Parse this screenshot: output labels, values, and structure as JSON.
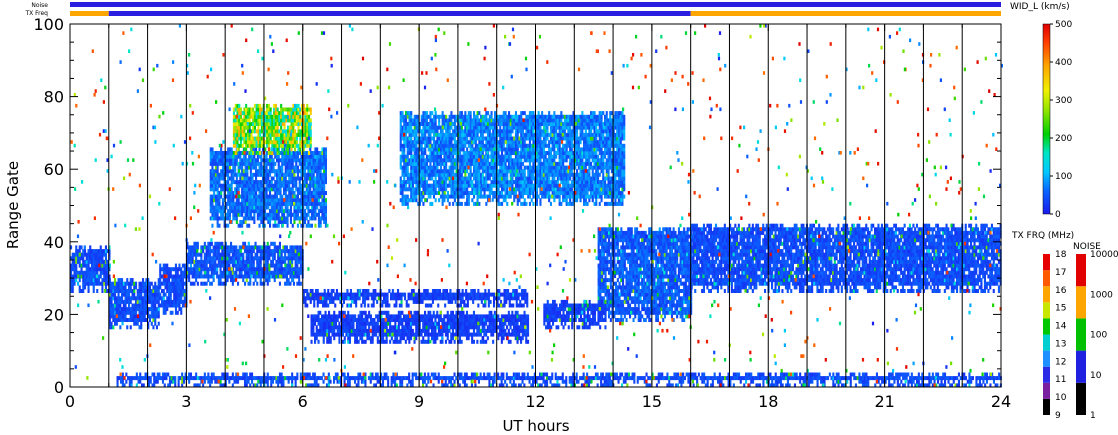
{
  "chart_data": {
    "type": "heatmap",
    "xlabel": "UT hours",
    "ylabel": "Range Gate",
    "xlim": [
      0,
      24
    ],
    "ylim": [
      0,
      100
    ],
    "x_ticks": [
      0,
      3,
      6,
      9,
      12,
      15,
      18,
      21,
      24
    ],
    "y_ticks": [
      0,
      20,
      40,
      60,
      80,
      100
    ],
    "scan_boundaries_ut": [
      1,
      2,
      3,
      4,
      5,
      6,
      7,
      8,
      9,
      10,
      11,
      12,
      13,
      14,
      15,
      16,
      17,
      18,
      19,
      20,
      21,
      22,
      23
    ],
    "status_bars": {
      "noise_label": "Noise",
      "txfreq_label": "TX Freq",
      "noise_color": "#2a1ee0",
      "txfreq_segments": [
        {
          "start": 0,
          "end": 1,
          "color": "#ffa500"
        },
        {
          "start": 1,
          "end": 16,
          "color": "#2a1ee0"
        },
        {
          "start": 16,
          "end": 24,
          "color": "#ffa500"
        }
      ]
    },
    "colorbars": {
      "width": {
        "title": "WID_L (km/s)",
        "min": 0,
        "max": 500,
        "ticks": [
          "0",
          "100",
          "200",
          "300",
          "400",
          "500"
        ]
      },
      "txfreq": {
        "title": "TX FRQ (MHz)",
        "ticks": [
          "9",
          "10",
          "11",
          "12",
          "13",
          "14",
          "15",
          "16",
          "17",
          "18"
        ],
        "colors": [
          "#000000",
          "#7a1fa0",
          "#2b2be8",
          "#1e90ff",
          "#00ced1",
          "#00c800",
          "#c8e600",
          "#ffa500",
          "#ff5a00",
          "#e60000"
        ]
      },
      "noise": {
        "title": "NOISE",
        "ticks": [
          "1",
          "10",
          "100",
          "1000",
          "10000"
        ],
        "colors": [
          "#000000",
          "#2020e0",
          "#00c000",
          "#ffa500",
          "#e00000"
        ]
      }
    },
    "regions": [
      {
        "name": "near-range-echo-band-early",
        "ut_start": 0,
        "ut_end": 1,
        "gate_low": 26,
        "gate_high": 39,
        "width_kms": 40
      },
      {
        "name": "near-range-echo-band-dip",
        "ut_start": 1,
        "ut_end": 2.3,
        "gate_low": 16,
        "gate_high": 30,
        "width_kms": 40
      },
      {
        "name": "near-range-echo-band-rise",
        "ut_start": 2.3,
        "ut_end": 3,
        "gate_low": 20,
        "gate_high": 34,
        "width_kms": 40
      },
      {
        "name": "near-range-echo-band-mid",
        "ut_start": 3,
        "ut_end": 6,
        "gate_low": 28,
        "gate_high": 40,
        "width_kms": 45
      },
      {
        "name": "near-range-echo-band-late",
        "ut_start": 16,
        "ut_end": 24,
        "gate_low": 26,
        "gate_high": 45,
        "width_kms": 40
      },
      {
        "name": "dawn-descending-band",
        "ut_start": 13.6,
        "ut_end": 16,
        "gate_low": 18,
        "gate_high": 44,
        "width_kms": 50
      },
      {
        "name": "midday-band-upper",
        "ut_start": 6,
        "ut_end": 11.8,
        "gate_low": 22,
        "gate_high": 27,
        "width_kms": 30
      },
      {
        "name": "midday-band-lower",
        "ut_start": 6.2,
        "ut_end": 11.8,
        "gate_low": 12,
        "gate_high": 21,
        "width_kms": 30
      },
      {
        "name": "noon-patch",
        "ut_start": 12.2,
        "ut_end": 13.8,
        "gate_low": 16,
        "gate_high": 24,
        "width_kms": 30
      },
      {
        "name": "far-range-patch-morning",
        "ut_start": 3.6,
        "ut_end": 6.6,
        "gate_low": 44,
        "gate_high": 66,
        "width_kms": 60
      },
      {
        "name": "far-range-patch-noon",
        "ut_start": 8.5,
        "ut_end": 14.3,
        "gate_low": 50,
        "gate_high": 76,
        "width_kms": 70
      },
      {
        "name": "high-width-patch",
        "ut_start": 4.2,
        "ut_end": 6.2,
        "gate_low": 64,
        "gate_high": 78,
        "width_kms": 260
      },
      {
        "name": "ground-scatter-strip",
        "ut_start": 1.2,
        "ut_end": 24,
        "gate_low": 0,
        "gate_high": 4,
        "width_kms": 40
      }
    ]
  }
}
